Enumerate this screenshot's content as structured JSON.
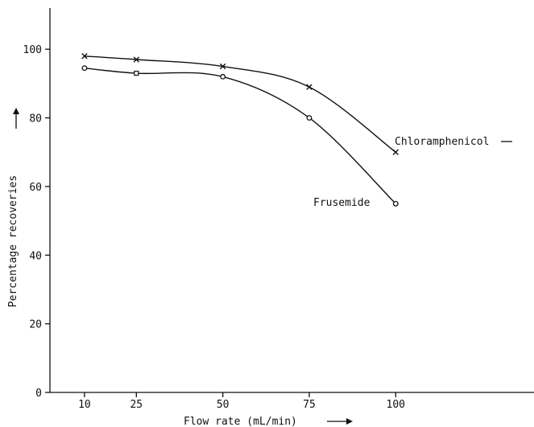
{
  "chart_data": {
    "type": "line",
    "title": "",
    "xlabel": "Flow rate (mL/min)",
    "ylabel": "Percentage recoveries",
    "x": [
      10,
      25,
      50,
      75,
      100
    ],
    "xticks": [
      10,
      25,
      50,
      75,
      100
    ],
    "xlim": [
      0,
      140
    ],
    "yticks": [
      0,
      20,
      40,
      60,
      80,
      100
    ],
    "ylim": [
      0,
      112
    ],
    "grid": false,
    "series": [
      {
        "name": "Chloramphenicol",
        "marker": "x",
        "values": [
          98,
          97,
          95,
          89,
          70
        ]
      },
      {
        "name": "Frusemide",
        "marker": "o",
        "values": [
          94.5,
          93,
          92,
          80,
          55
        ]
      }
    ]
  }
}
